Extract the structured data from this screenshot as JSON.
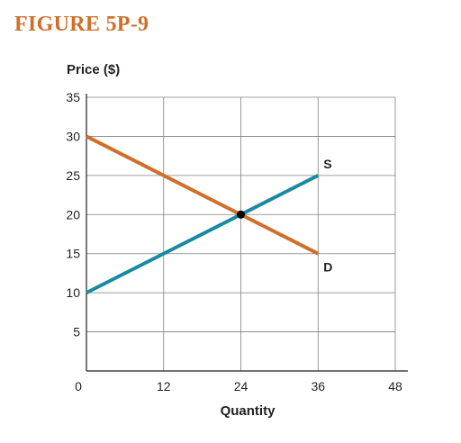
{
  "figure": {
    "title": "FIGURE 5P-9",
    "title_color": "#d06f2a"
  },
  "chart_data": {
    "type": "line",
    "title": "",
    "xlabel": "Quantity",
    "ylabel": "Price ($)",
    "xlim": [
      0,
      48
    ],
    "ylim": [
      0,
      35
    ],
    "xticks": [
      0,
      12,
      24,
      36,
      48
    ],
    "yticks": [
      5,
      10,
      15,
      20,
      25,
      30,
      35
    ],
    "grid": true,
    "series": [
      {
        "name": "S",
        "color": "#1a8aa0",
        "points": [
          [
            0,
            10
          ],
          [
            36,
            25
          ]
        ]
      },
      {
        "name": "D",
        "color": "#d06f2a",
        "points": [
          [
            0,
            30
          ],
          [
            36,
            15
          ]
        ]
      }
    ],
    "equilibrium": {
      "x": 24,
      "y": 20,
      "color": "#000000"
    },
    "grid_color": "#7f7f7f",
    "axis_color": "#231f20"
  }
}
